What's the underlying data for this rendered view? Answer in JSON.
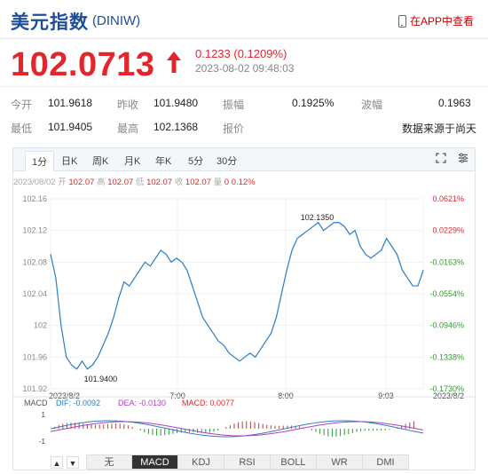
{
  "header": {
    "title": "美元指数",
    "code": "(DINIW)",
    "app_link": "在APP中查看"
  },
  "quote": {
    "price": "102.0713",
    "change": "0.1233 (0.1209%)",
    "time": "2023-08-02 09:48:03"
  },
  "stats": {
    "open_label": "今开",
    "open": "101.9618",
    "prev_close_label": "昨收",
    "prev_close": "101.9480",
    "amplitude_label": "振幅",
    "amplitude": "0.1925%",
    "wave_label": "波幅",
    "wave": "0.1963",
    "low_label": "最低",
    "low": "101.9405",
    "high_label": "最高",
    "high": "102.1368",
    "quote_label": "报价",
    "source": "数据来源于尚天"
  },
  "tabs": [
    "1分",
    "日K",
    "周K",
    "月K",
    "年K",
    "5分",
    "30分"
  ],
  "active_tab": "1分",
  "info_line": {
    "date": "2023/08/02",
    "open_label": "开",
    "open": "102.07",
    "high_label": "高",
    "high": "102.07",
    "low_label": "低",
    "low": "102.07",
    "close_label": "收",
    "close": "102.07",
    "vol_label": "量",
    "vol": "0",
    "pct": "0.12%"
  },
  "macd_info": {
    "label": "MACD",
    "dif": "DIF: -0.0092",
    "dea": "DEA: -0.0130",
    "macd": "MACD: 0.0077"
  },
  "indicator_tabs": [
    "无",
    "MACD",
    "KDJ",
    "RSI",
    "BOLL",
    "WR",
    "DMI"
  ],
  "active_indicator": "MACD",
  "colors": {
    "up": "#e3252d",
    "down": "#2a9d2a",
    "line": "#2b7cc6",
    "brand": "#1d4f96"
  },
  "chart_data": {
    "type": "line",
    "ylim": [
      101.92,
      102.16
    ],
    "y_ticks": [
      "102.16",
      "102.12",
      "102.08",
      "102.04",
      "102",
      "101.96",
      "101.92"
    ],
    "pct_ticks": [
      "0.0621%",
      "0.0229%",
      "-0.0163%",
      "-0.0554%",
      "-0.0946%",
      "-0.1338%",
      "-0.1730%"
    ],
    "x_ticks": [
      "2023/8/2",
      "7:00",
      "8:00",
      "9:03",
      "2023/8/2"
    ],
    "annotations": {
      "low": "101.9400",
      "high": "102.1350"
    },
    "series": [
      {
        "values": [
          102.09,
          102.06,
          102.0,
          101.96,
          101.95,
          101.945,
          101.955,
          101.945,
          101.95,
          101.96,
          101.975,
          101.99,
          102.01,
          102.035,
          102.055,
          102.05,
          102.06,
          102.07,
          102.08,
          102.075,
          102.085,
          102.095,
          102.09,
          102.08,
          102.085,
          102.08,
          102.07,
          102.05,
          102.03,
          102.01,
          102.0,
          101.99,
          101.98,
          101.975,
          101.965,
          101.96,
          101.955,
          101.96,
          101.965,
          101.96,
          101.97,
          101.98,
          101.99,
          102.01,
          102.04,
          102.07,
          102.095,
          102.11,
          102.115,
          102.12,
          102.125,
          102.13,
          102.12,
          102.125,
          102.13,
          102.13,
          102.125,
          102.115,
          102.12,
          102.1,
          102.09,
          102.085,
          102.09,
          102.095,
          102.11,
          102.1,
          102.09,
          102.07,
          102.06,
          102.05,
          102.05,
          102.07
        ]
      }
    ]
  }
}
